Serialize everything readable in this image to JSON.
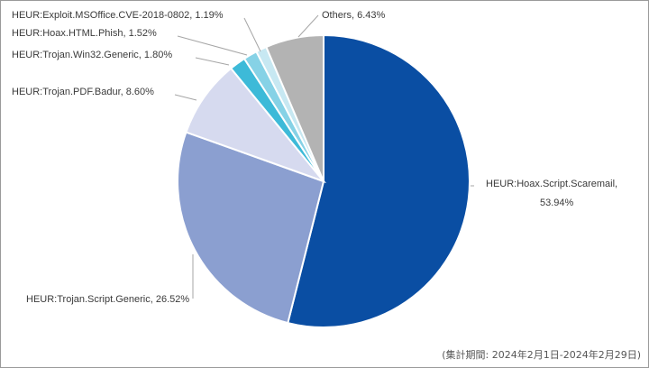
{
  "chart_data": {
    "type": "pie",
    "slices": [
      {
        "label": "HEUR:Hoax.Script.Scaremail",
        "value": 53.94,
        "display": "53.94%",
        "color": "#0a4ea3"
      },
      {
        "label": "HEUR:Trojan.Script.Generic",
        "value": 26.52,
        "display": "26.52%",
        "color": "#8b9fd0"
      },
      {
        "label": "HEUR:Trojan.PDF.Badur",
        "value": 8.6,
        "display": "8.60%",
        "color": "#d6daef"
      },
      {
        "label": "HEUR:Trojan.Win32.Generic",
        "value": 1.8,
        "display": "1.80%",
        "color": "#3dbad8"
      },
      {
        "label": "HEUR:Hoax.HTML.Phish",
        "value": 1.52,
        "display": "1.52%",
        "color": "#86d2e6"
      },
      {
        "label": "HEUR:Exploit.MSOffice.CVE-2018-0802",
        "value": 1.19,
        "display": "1.19%",
        "color": "#c7e8f2"
      },
      {
        "label": "Others",
        "value": 6.43,
        "display": "6.43%",
        "color": "#b3b3b3"
      }
    ],
    "start": "12 o'clock",
    "direction": "clockwise"
  },
  "footnote": "(集計期間: 2024年2月1日-2024年2月29日)"
}
